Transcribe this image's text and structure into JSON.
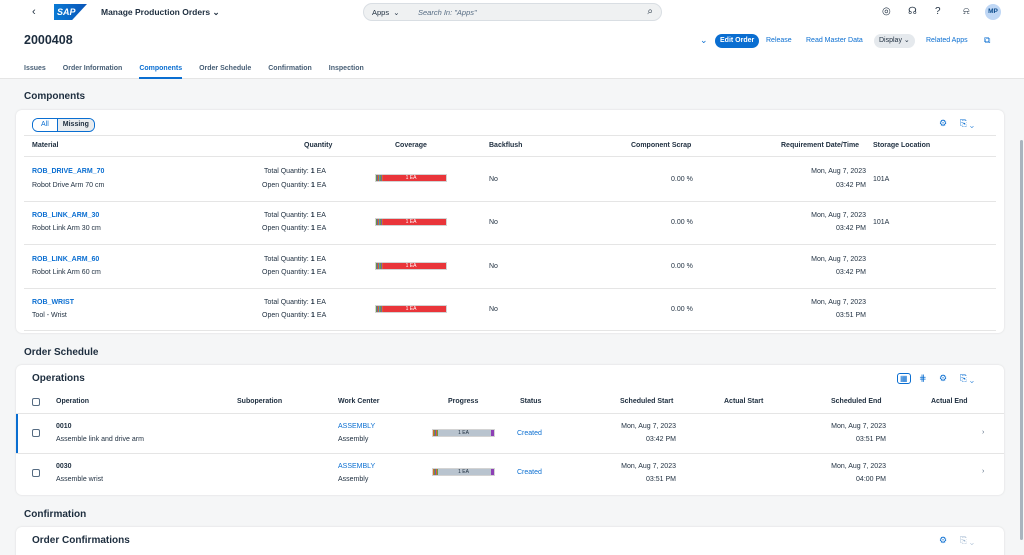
{
  "shell": {
    "back_icon": "back-icon",
    "logo": "SAP",
    "app_title": "Manage Production Orders",
    "search_scope": "Apps",
    "search_placeholder": "Search In: \"Apps\"",
    "avatar": "MP"
  },
  "header": {
    "title": "2000408",
    "buttons": {
      "edit": "Edit Order",
      "release": "Release",
      "master": "Read Master Data",
      "display": "Display",
      "related": "Related Apps"
    },
    "tabs": [
      "Issues",
      "Order Information",
      "Components",
      "Order Schedule",
      "Confirmation",
      "Inspection"
    ],
    "active_tab": "Components"
  },
  "components": {
    "section_title": "Components",
    "segments": {
      "all": "All",
      "missing": "Missing"
    },
    "columns": {
      "material": "Material",
      "quantity": "Quantity",
      "coverage": "Coverage",
      "backflush": "Backflush",
      "scrap": "Component Scrap",
      "req": "Requirement Date/Time",
      "storage": "Storage Location"
    },
    "rows": [
      {
        "material": "ROB_DRIVE_ARM_70",
        "desc": "Robot Drive Arm 70 cm",
        "total_label": "Total Quantity:",
        "total": "1",
        "unit1": "EA",
        "open_label": "Open Quantity:",
        "open": "1",
        "unit2": "EA",
        "coverage": "1 EA",
        "backflush": "No",
        "scrap": "0.00 %",
        "date": "Mon, Aug 7, 2023",
        "time": "03:42 PM",
        "storage": "101A"
      },
      {
        "material": "ROB_LINK_ARM_30",
        "desc": "Robot Link Arm 30 cm",
        "total_label": "Total Quantity:",
        "total": "1",
        "unit1": "EA",
        "open_label": "Open Quantity:",
        "open": "1",
        "unit2": "EA",
        "coverage": "1 EA",
        "backflush": "No",
        "scrap": "0.00 %",
        "date": "Mon, Aug 7, 2023",
        "time": "03:42 PM",
        "storage": "101A"
      },
      {
        "material": "ROB_LINK_ARM_60",
        "desc": "Robot Link Arm 60 cm",
        "total_label": "Total Quantity:",
        "total": "1",
        "unit1": "EA",
        "open_label": "Open Quantity:",
        "open": "1",
        "unit2": "EA",
        "coverage": "1 EA",
        "backflush": "No",
        "scrap": "0.00 %",
        "date": "Mon, Aug 7, 2023",
        "time": "03:42 PM",
        "storage": ""
      },
      {
        "material": "ROB_WRIST",
        "desc": "Tool - Wrist",
        "total_label": "Total Quantity:",
        "total": "1",
        "unit1": "EA",
        "open_label": "Open Quantity:",
        "open": "1",
        "unit2": "EA",
        "coverage": "1 EA",
        "backflush": "No",
        "scrap": "0.00 %",
        "date": "Mon, Aug 7, 2023",
        "time": "03:51 PM",
        "storage": ""
      }
    ]
  },
  "schedule": {
    "section_title": "Order Schedule",
    "card_title": "Operations",
    "columns": {
      "operation": "Operation",
      "subop": "Suboperation",
      "workcenter": "Work Center",
      "progress": "Progress",
      "status": "Status",
      "sched_start": "Scheduled Start",
      "actual_start": "Actual Start",
      "sched_end": "Scheduled End",
      "actual_end": "Actual End"
    },
    "rows": [
      {
        "op": "0010",
        "desc": "Assemble link and drive arm",
        "wc": "ASSEMBLY",
        "wc_desc": "Assembly",
        "progress": "1 EA",
        "status": "Created",
        "start_date": "Mon, Aug 7, 2023",
        "start_time": "03:42 PM",
        "end_date": "Mon, Aug 7, 2023",
        "end_time": "03:51 PM"
      },
      {
        "op": "0030",
        "desc": "Assemble wrist",
        "wc": "ASSEMBLY",
        "wc_desc": "Assembly",
        "progress": "1 EA",
        "status": "Created",
        "start_date": "Mon, Aug 7, 2023",
        "start_time": "03:51 PM",
        "end_date": "Mon, Aug 7, 2023",
        "end_time": "04:00 PM"
      }
    ]
  },
  "confirmation": {
    "section_title": "Confirmation",
    "card_title": "Order Confirmations"
  },
  "colors": {
    "accent": "#0a6ed1",
    "coverage_red": "#e9353a"
  }
}
